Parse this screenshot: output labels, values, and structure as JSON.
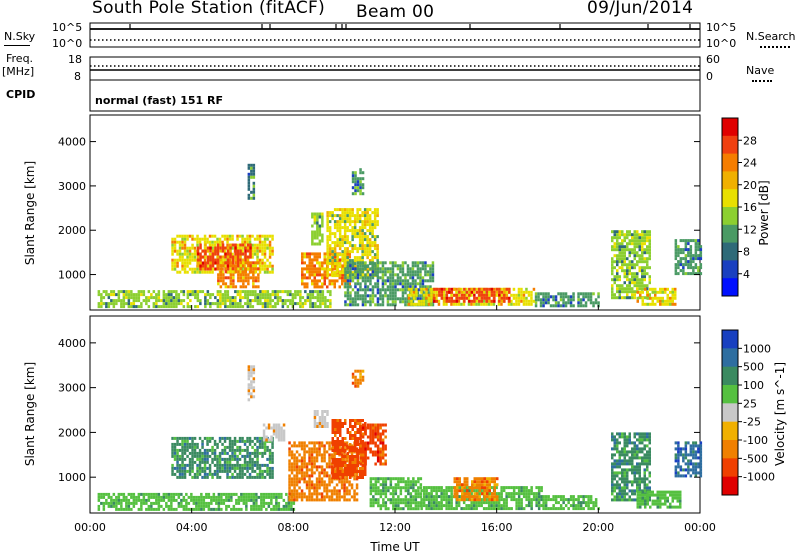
{
  "header": {
    "station": "South Pole Station (fitACF)",
    "beam": "Beam 00",
    "date": "09/Jun/2014"
  },
  "sky_panel": {
    "left_label": "N.Sky",
    "right_label": "N.Search",
    "left_ticks": [
      "10^5",
      "10^0"
    ],
    "right_ticks": [
      "10^5",
      "10^0"
    ]
  },
  "freq_panel": {
    "left_label_line1": "Freq.",
    "left_label_line2": "[MHz]",
    "left_ticks": [
      "18",
      "8"
    ],
    "right_label": "Nave",
    "right_ticks": [
      "60",
      "0"
    ],
    "cpid_label": "CPID"
  },
  "cpid_text": "normal (fast) 151 RF",
  "power_colorbar": {
    "label": "Power [dB]",
    "ticks": [
      "28",
      "24",
      "20",
      "16",
      "12",
      "8",
      "4"
    ],
    "colors": [
      "#e00000",
      "#f04010",
      "#f57d00",
      "#f0b000",
      "#e8e000",
      "#8ccf30",
      "#4a9a64",
      "#2e6a78",
      "#1a40c0",
      "#0010ff"
    ]
  },
  "velocity_colorbar": {
    "label": "Velocity [m s^-1]",
    "ticks": [
      "1000",
      "500",
      "100",
      "25",
      "-25",
      "-100",
      "-500",
      "-1000"
    ],
    "colors": [
      "#1840c0",
      "#2e6ea0",
      "#3a8a60",
      "#55c040",
      "#c8c8c8",
      "#f0b000",
      "#f08000",
      "#f04000",
      "#e00000"
    ]
  },
  "chart_data": [
    {
      "type": "heatmap",
      "name": "power",
      "ylabel": "Slant Range [km]",
      "yticks": [
        1000,
        2000,
        3000,
        4000
      ],
      "ylim": [
        200,
        4600
      ],
      "xlim": [
        0,
        24
      ],
      "regions": [
        {
          "x0": 0.3,
          "x1": 3.7,
          "y0": 300,
          "y1": 650,
          "v": 12
        },
        {
          "x0": 3.2,
          "x1": 7.2,
          "y0": 1050,
          "y1": 1900,
          "v": 18
        },
        {
          "x0": 4.2,
          "x1": 6.3,
          "y0": 1150,
          "y1": 1700,
          "v": 26
        },
        {
          "x0": 5.0,
          "x1": 6.6,
          "y0": 700,
          "y1": 1300,
          "v": 24
        },
        {
          "x0": 3.8,
          "x1": 9.5,
          "y0": 300,
          "y1": 650,
          "v": 14
        },
        {
          "x0": 8.3,
          "x1": 10.2,
          "y0": 700,
          "y1": 1500,
          "v": 22
        },
        {
          "x0": 9.3,
          "x1": 11.3,
          "y0": 1000,
          "y1": 2500,
          "v": 16
        },
        {
          "x0": 10.0,
          "x1": 13.5,
          "y0": 300,
          "y1": 1300,
          "v": 10
        },
        {
          "x0": 12.5,
          "x1": 17.5,
          "y0": 300,
          "y1": 700,
          "v": 18
        },
        {
          "x0": 13.5,
          "x1": 16.5,
          "y0": 400,
          "y1": 700,
          "v": 26
        },
        {
          "x0": 17.5,
          "x1": 20.0,
          "y0": 300,
          "y1": 600,
          "v": 9
        },
        {
          "x0": 20.5,
          "x1": 22.0,
          "y0": 500,
          "y1": 2000,
          "v": 14
        },
        {
          "x0": 21.5,
          "x1": 23.0,
          "y0": 300,
          "y1": 700,
          "v": 18
        },
        {
          "x0": 23.0,
          "x1": 24.0,
          "y0": 1000,
          "y1": 1800,
          "v": 10
        },
        {
          "x0": 6.2,
          "x1": 6.4,
          "y0": 2700,
          "y1": 3500,
          "v": 8
        },
        {
          "x0": 8.7,
          "x1": 9.1,
          "y0": 1700,
          "y1": 2400,
          "v": 12
        },
        {
          "x0": 10.3,
          "x1": 10.7,
          "y0": 2800,
          "y1": 3400,
          "v": 10
        }
      ]
    },
    {
      "type": "heatmap",
      "name": "velocity",
      "ylabel": "Slant Range [km]",
      "yticks": [
        1000,
        2000,
        3000,
        4000
      ],
      "ylim": [
        200,
        4600
      ],
      "xlim": [
        0,
        24
      ],
      "xticks": [
        "00:00",
        "04:00",
        "08:00",
        "12:00",
        "16:00",
        "20:00",
        "00:00"
      ],
      "xlabel": "Time UT",
      "regions": [
        {
          "x0": 0.3,
          "x1": 8.0,
          "y0": 300,
          "y1": 650,
          "v": 60
        },
        {
          "x0": 3.2,
          "x1": 7.2,
          "y0": 1000,
          "y1": 1900,
          "v": 120
        },
        {
          "x0": 6.8,
          "x1": 7.6,
          "y0": 1800,
          "y1": 2200,
          "v": 0
        },
        {
          "x0": 7.8,
          "x1": 10.5,
          "y0": 500,
          "y1": 1800,
          "v": -300
        },
        {
          "x0": 9.5,
          "x1": 10.8,
          "y0": 1000,
          "y1": 2300,
          "v": -600
        },
        {
          "x0": 10.6,
          "x1": 11.6,
          "y0": 1300,
          "y1": 2200,
          "v": -700
        },
        {
          "x0": 8.8,
          "x1": 9.3,
          "y0": 2100,
          "y1": 2500,
          "v": 0
        },
        {
          "x0": 11.0,
          "x1": 13.0,
          "y0": 300,
          "y1": 1000,
          "v": 60
        },
        {
          "x0": 13.0,
          "x1": 17.8,
          "y0": 300,
          "y1": 800,
          "v": 80
        },
        {
          "x0": 14.3,
          "x1": 16.0,
          "y0": 500,
          "y1": 1000,
          "v": -200
        },
        {
          "x0": 17.8,
          "x1": 20.0,
          "y0": 300,
          "y1": 600,
          "v": 60
        },
        {
          "x0": 20.5,
          "x1": 22.0,
          "y0": 500,
          "y1": 2000,
          "v": 100
        },
        {
          "x0": 21.5,
          "x1": 23.2,
          "y0": 300,
          "y1": 700,
          "v": 60
        },
        {
          "x0": 23.0,
          "x1": 24.0,
          "y0": 1000,
          "y1": 1800,
          "v": 900
        },
        {
          "x0": 6.2,
          "x1": 6.4,
          "y0": 2700,
          "y1": 3500,
          "v": 0
        },
        {
          "x0": 10.3,
          "x1": 10.7,
          "y0": 3000,
          "y1": 3400,
          "v": -150
        }
      ]
    }
  ]
}
